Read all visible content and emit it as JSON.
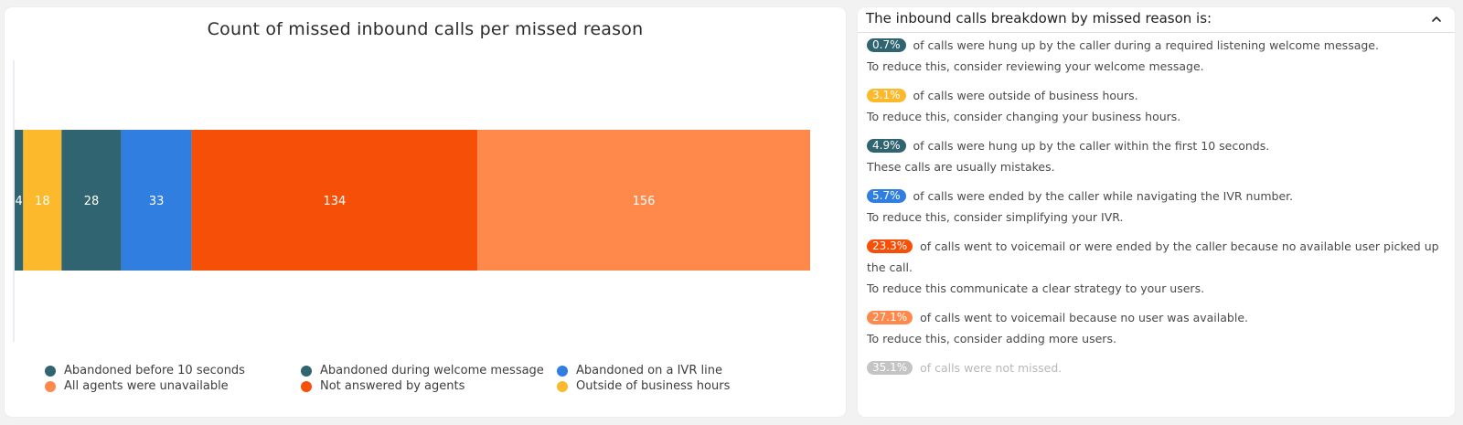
{
  "chart_data": {
    "type": "bar",
    "orientation": "horizontal-stacked",
    "title": "Count of missed inbound calls per missed reason",
    "categories": [
      ""
    ],
    "series": [
      {
        "name": "Abandoned during welcome message",
        "values": [
          4
        ],
        "color": "#2f6470"
      },
      {
        "name": "Outside of business hours",
        "values": [
          18
        ],
        "color": "#fbb92b"
      },
      {
        "name": "Abandoned before 10 seconds",
        "values": [
          28
        ],
        "color": "#2f6470"
      },
      {
        "name": "Abandoned on a IVR line",
        "values": [
          33
        ],
        "color": "#2f7ee0"
      },
      {
        "name": "Not answered by agents",
        "values": [
          134
        ],
        "color": "#f65008"
      },
      {
        "name": "All agents were unavailable",
        "values": [
          156
        ],
        "color": "#ff884b"
      }
    ],
    "xlim": [
      0,
      373
    ],
    "grid": false,
    "legend_position": "bottom",
    "legend": [
      {
        "label": "Abandoned before 10 seconds",
        "color": "#2f6470"
      },
      {
        "label": "Abandoned during welcome message",
        "color": "#2f6470"
      },
      {
        "label": "Abandoned on a IVR line",
        "color": "#2f7ee0"
      },
      {
        "label": "All agents were unavailable",
        "color": "#ff884b"
      },
      {
        "label": "Not answered by agents",
        "color": "#f65008"
      },
      {
        "label": "Outside of business hours",
        "color": "#fbb92b"
      }
    ]
  },
  "breakdown": {
    "title": "The inbound calls breakdown by missed reason is:",
    "collapse_icon": "chevron-up-icon",
    "items": [
      {
        "pct": "0.7%",
        "color": "#2f6470",
        "line1": "of calls were hung up by the caller during a required listening welcome message.",
        "line2": "To reduce this, consider reviewing your welcome message."
      },
      {
        "pct": "3.1%",
        "color": "#fbb92b",
        "line1": "of calls were outside of business hours.",
        "line2": "To reduce this, consider changing your business hours."
      },
      {
        "pct": "4.9%",
        "color": "#2f6470",
        "line1": "of calls were hung up by the caller within the first 10 seconds.",
        "line2": "These calls are usually mistakes."
      },
      {
        "pct": "5.7%",
        "color": "#2f7ee0",
        "line1": "of calls were ended by the caller while navigating the IVR number.",
        "line2": "To reduce this, consider simplifying your IVR."
      },
      {
        "pct": "23.3%",
        "color": "#f65008",
        "line1": "of calls went to voicemail or were ended by the caller because no available user picked up the call.",
        "line2": "To reduce this communicate a clear strategy to your users."
      },
      {
        "pct": "27.1%",
        "color": "#ff884b",
        "line1": "of calls went to voicemail because no user was available.",
        "line2": "To reduce this, consider adding more users."
      },
      {
        "pct": "35.1%",
        "color": "#c4c4c4",
        "line1": "of calls were not missed.",
        "line2": ""
      }
    ]
  }
}
